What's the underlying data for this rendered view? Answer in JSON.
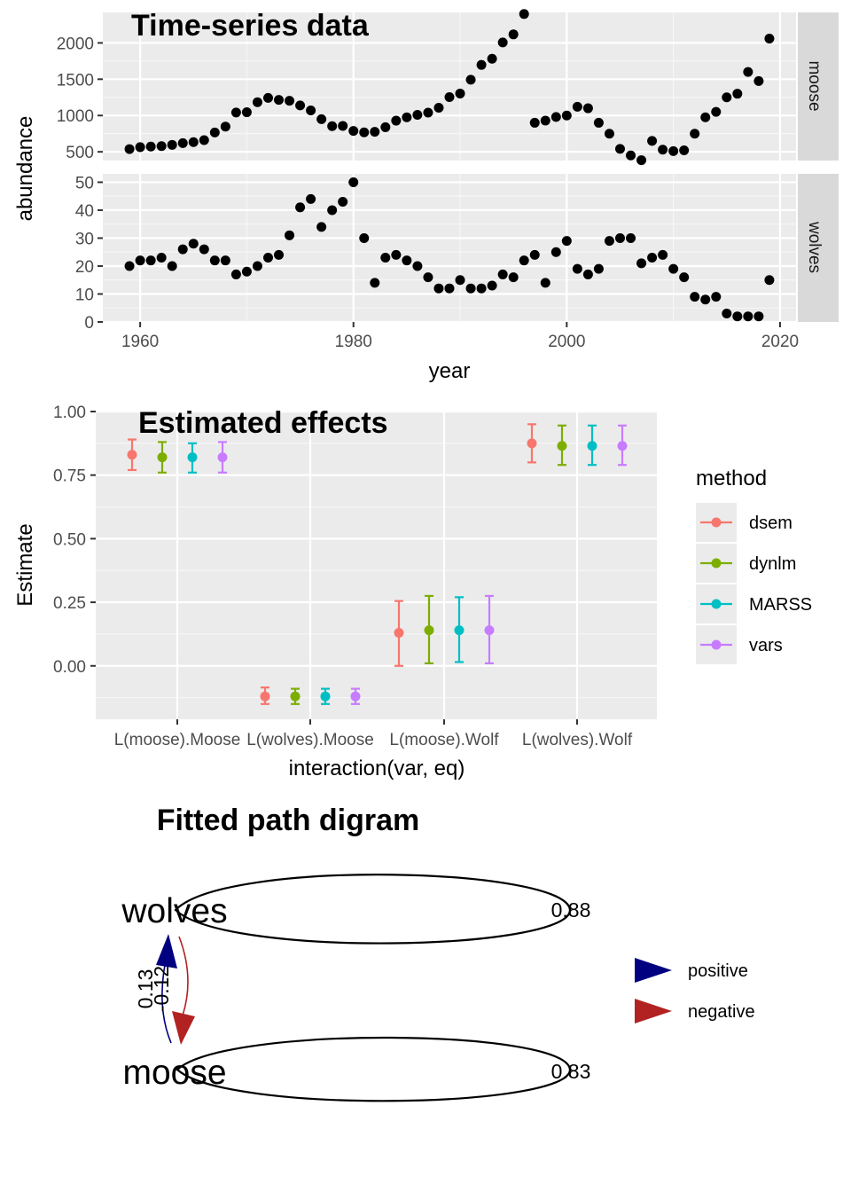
{
  "chart_data": [
    {
      "type": "scatter",
      "title": "Time-series data",
      "xlabel": "year",
      "ylabel": "abundance",
      "xlim": [
        1956.5,
        2021.5
      ],
      "x_ticks": [
        "1960",
        "1980",
        "2000",
        "2020"
      ],
      "x_tick_values": [
        1960,
        1980,
        2000,
        2020
      ],
      "grid": true,
      "facets": [
        {
          "name": "moose",
          "ylim": [
            380,
            2420
          ],
          "y_ticks": [
            "500",
            "1000",
            "1500",
            "2000"
          ],
          "y_tick_values": [
            500,
            1000,
            1500,
            2000
          ],
          "x": [
            1959,
            1960,
            1961,
            1962,
            1963,
            1964,
            1965,
            1966,
            1967,
            1968,
            1969,
            1970,
            1971,
            1972,
            1973,
            1974,
            1975,
            1976,
            1977,
            1978,
            1979,
            1980,
            1981,
            1982,
            1983,
            1984,
            1985,
            1986,
            1987,
            1988,
            1989,
            1990,
            1991,
            1992,
            1993,
            1994,
            1995,
            1996,
            1997,
            1998,
            1999,
            2000,
            2001,
            2002,
            2003,
            2004,
            2005,
            2006,
            2007,
            2008,
            2009,
            2010,
            2011,
            2012,
            2013,
            2014,
            2015,
            2016,
            2017,
            2018,
            2019
          ],
          "y": [
            538,
            564,
            572,
            579,
            596,
            620,
            634,
            661,
            766,
            848,
            1041,
            1045,
            1183,
            1243,
            1215,
            1203,
            1139,
            1070,
            949,
            853,
            857,
            788,
            768,
            775,
            839,
            929,
            976,
            1009,
            1040,
            1107,
            1254,
            1303,
            1493,
            1697,
            1782,
            2006,
            2117,
            2398,
            900,
            930,
            980,
            1000,
            1120,
            1100,
            900,
            750,
            540,
            450,
            385,
            650,
            530,
            510,
            520,
            750,
            975,
            1050,
            1250,
            1300,
            1600,
            1475,
            2060
          ]
        },
        {
          "name": "wolves",
          "ylim": [
            0,
            53
          ],
          "y_ticks": [
            "0",
            "10",
            "20",
            "30",
            "40",
            "50"
          ],
          "y_tick_values": [
            0,
            10,
            20,
            30,
            40,
            50
          ],
          "x": [
            1959,
            1960,
            1961,
            1962,
            1963,
            1964,
            1965,
            1966,
            1967,
            1968,
            1969,
            1970,
            1971,
            1972,
            1973,
            1974,
            1975,
            1976,
            1977,
            1978,
            1979,
            1980,
            1981,
            1982,
            1983,
            1984,
            1985,
            1986,
            1987,
            1988,
            1989,
            1990,
            1991,
            1992,
            1993,
            1994,
            1995,
            1996,
            1997,
            1998,
            1999,
            2000,
            2001,
            2002,
            2003,
            2004,
            2005,
            2006,
            2007,
            2008,
            2009,
            2010,
            2011,
            2012,
            2013,
            2014,
            2015,
            2016,
            2017,
            2018,
            2019
          ],
          "y": [
            20,
            22,
            22,
            23,
            20,
            26,
            28,
            26,
            22,
            22,
            17,
            18,
            20,
            23,
            24,
            31,
            41,
            44,
            34,
            40,
            43,
            50,
            30,
            14,
            23,
            24,
            22,
            20,
            16,
            12,
            12,
            15,
            12,
            12,
            13,
            17,
            16,
            22,
            24,
            14,
            25,
            29,
            19,
            17,
            19,
            29,
            30,
            30,
            21,
            23,
            24,
            19,
            16,
            9,
            8,
            9,
            3,
            2,
            2,
            2,
            15
          ]
        }
      ]
    },
    {
      "type": "errorbar",
      "title": "Estimated effects",
      "xlabel": "interaction(var, eq)",
      "ylabel": "Estimate",
      "ylim": [
        -0.21,
        1.0
      ],
      "y_ticks": [
        "0.00",
        "0.25",
        "0.50",
        "0.75",
        "1.00"
      ],
      "y_tick_values": [
        0,
        0.25,
        0.5,
        0.75,
        1.0
      ],
      "grid": true,
      "categories": [
        "L(moose).Moose",
        "L(wolves).Moose",
        "L(moose).Wolf",
        "L(wolves).Wolf"
      ],
      "legend": {
        "title": "method",
        "placement": "right"
      },
      "series": [
        {
          "name": "dsem",
          "color": "#F8766D",
          "values": [
            0.83,
            -0.12,
            0.13,
            0.875
          ],
          "lower": [
            0.77,
            -0.15,
            0.0,
            0.8
          ],
          "upper": [
            0.89,
            -0.085,
            0.255,
            0.95
          ]
        },
        {
          "name": "dynlm",
          "color": "#7CAE00",
          "values": [
            0.82,
            -0.12,
            0.14,
            0.865
          ],
          "lower": [
            0.76,
            -0.15,
            0.01,
            0.79
          ],
          "upper": [
            0.88,
            -0.09,
            0.275,
            0.945
          ]
        },
        {
          "name": "MARSS",
          "color": "#00BFC4",
          "values": [
            0.82,
            -0.12,
            0.14,
            0.865
          ],
          "lower": [
            0.76,
            -0.15,
            0.015,
            0.79
          ],
          "upper": [
            0.875,
            -0.09,
            0.27,
            0.945
          ]
        },
        {
          "name": "vars",
          "color": "#C77CFF",
          "values": [
            0.82,
            -0.12,
            0.14,
            0.865
          ],
          "lower": [
            0.76,
            -0.15,
            0.01,
            0.79
          ],
          "upper": [
            0.88,
            -0.09,
            0.275,
            0.945
          ]
        }
      ]
    },
    {
      "type": "diagram",
      "title": "Fitted path digram",
      "nodes": [
        "wolves",
        "moose"
      ],
      "edges": [
        {
          "from": "wolves",
          "to": "wolves",
          "label": "0.88",
          "sign": "positive"
        },
        {
          "from": "moose",
          "to": "moose",
          "label": "0.83",
          "sign": "positive"
        },
        {
          "from": "moose",
          "to": "wolves",
          "label": "0.13",
          "sign": "positive"
        },
        {
          "from": "wolves",
          "to": "moose",
          "label": "-0.12",
          "sign": "negative"
        }
      ],
      "legend": [
        {
          "label": "positive",
          "color": "#000080"
        },
        {
          "label": "negative",
          "color": "#B22222"
        }
      ]
    }
  ]
}
